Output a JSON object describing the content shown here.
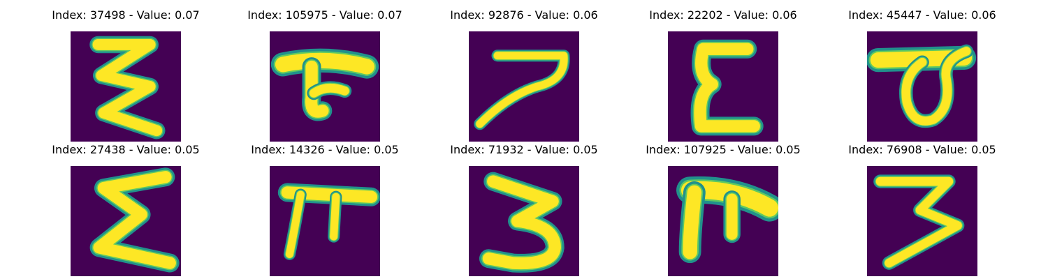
{
  "panels": [
    {
      "title": "Index: 37498 - Value: 0.07",
      "glyph": "zigzag-3"
    },
    {
      "title": "Index: 105975 - Value: 0.07",
      "glyph": "tee-hook"
    },
    {
      "title": "Index: 92876 - Value: 0.06",
      "glyph": "seven-curve"
    },
    {
      "title": "Index: 22202 - Value: 0.06",
      "glyph": "epsilon"
    },
    {
      "title": "Index: 45447 - Value: 0.06",
      "glyph": "bar-loop"
    },
    {
      "title": "Index: 27438 - Value: 0.05",
      "glyph": "sigma"
    },
    {
      "title": "Index: 14326 - Value: 0.05",
      "glyph": "pi"
    },
    {
      "title": "Index: 71932 - Value: 0.05",
      "glyph": "three"
    },
    {
      "title": "Index: 107925 - Value: 0.05",
      "glyph": "pi-thick"
    },
    {
      "title": "Index: 76908 - Value: 0.05",
      "glyph": "seven-z"
    }
  ],
  "colors": {
    "background": "#440154",
    "stroke_core": "#fde725",
    "stroke_mid": "#5ec962",
    "stroke_edge": "#21918c"
  }
}
